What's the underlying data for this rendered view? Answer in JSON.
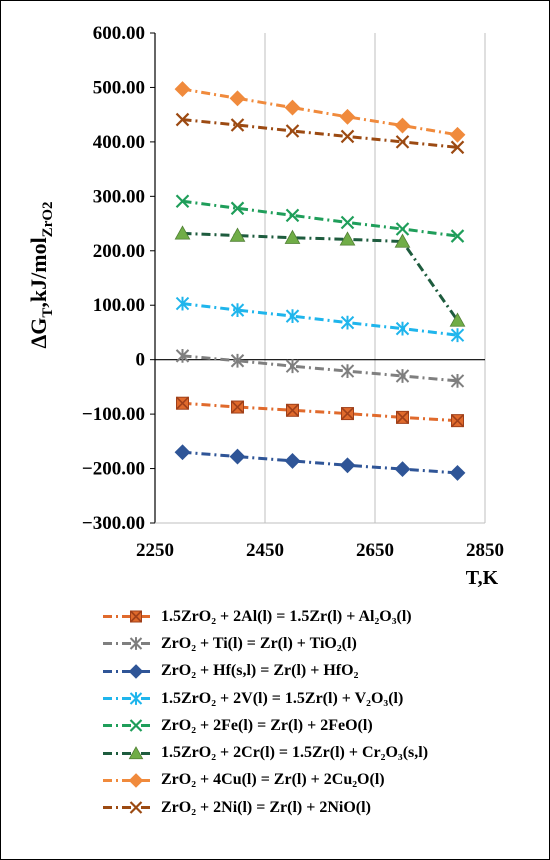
{
  "chart_data": {
    "type": "line",
    "ylabel_main": "ΔG",
    "ylabel_sub1": "T",
    "ylabel_mid": ",kJ/mol",
    "ylabel_sub2": "ZrO2",
    "xlabel": "T,K",
    "xlim": [
      2250,
      2850
    ],
    "ylim": [
      -300,
      600
    ],
    "x_ticks": [
      2250,
      2450,
      2650,
      2850
    ],
    "y_ticks": [
      {
        "value": 600,
        "label": "600.00"
      },
      {
        "value": 500,
        "label": "500.00"
      },
      {
        "value": 400,
        "label": "400.00"
      },
      {
        "value": 300,
        "label": "300.00"
      },
      {
        "value": 200,
        "label": "200.00"
      },
      {
        "value": 100,
        "label": "100.00"
      },
      {
        "value": 0,
        "label": "0"
      },
      {
        "value": -100,
        "label": "-100.00"
      },
      {
        "value": -200,
        "label": "-200.00"
      },
      {
        "value": -300,
        "label": "-300.00"
      }
    ],
    "grid": "vertical",
    "legend_position": "bottom",
    "x": [
      2300,
      2400,
      2500,
      2600,
      2700,
      2800
    ],
    "series": [
      {
        "name": "1.5ZrO₂ + 2Al(l) = 1.5Zr(l) + Al₂O₃(l)",
        "color": "#e06a2c",
        "marker": "boxx",
        "values": [
          -80,
          -87,
          -93,
          -99,
          -106,
          -112
        ]
      },
      {
        "name": "ZrO₂ + Ti(l) = Zr(l) + TiO₂(l)",
        "color": "#7f7f7f",
        "marker": "asterisk",
        "values": [
          7,
          -2,
          -12,
          -21,
          -30,
          -39
        ]
      },
      {
        "name": "ZrO₂ + Hf(s,l) = Zr(l) + HfO₂",
        "color": "#2f5597",
        "marker": "diamond",
        "values": [
          -170,
          -178,
          -186,
          -194,
          -201,
          -208
        ]
      },
      {
        "name": "1.5ZrO₂ + 2V(l) = 1.5Zr(l) + V₂O₃(l)",
        "color": "#1fb5ec",
        "marker": "asterisk",
        "values": [
          103,
          91,
          80,
          68,
          57,
          45
        ]
      },
      {
        "name": "ZrO₂ + 2Fe(l) = Zr(l) + 2FeO(l)",
        "color": "#1f9e5a",
        "marker": "x",
        "values": [
          291,
          278,
          265,
          252,
          240,
          227
        ]
      },
      {
        "name": "1.5ZrO₂ + 2Cr(l) = 1.5Zr(l) + Cr₂O₃(s,l)",
        "color": "#1e5c3e",
        "marker": "triangle",
        "values": [
          232,
          228,
          224,
          221,
          217,
          72
        ]
      },
      {
        "name": "ZrO₂ + 4Cu(l) = Zr(l) + 2Cu₂O(l)",
        "color": "#f08a3c",
        "marker": "diamond",
        "values": [
          497,
          480,
          463,
          446,
          430,
          413
        ]
      },
      {
        "name": "ZrO₂ + 2Ni(l) = Zr(l) + 2NiO(l)",
        "color": "#9c4a12",
        "marker": "x",
        "values": [
          441,
          431,
          420,
          410,
          400,
          390
        ]
      }
    ]
  },
  "marker_colors": {
    "triangle_fill": "#70ad47",
    "boxx_fill": "#e06a2c",
    "boxx_stroke": "#a0401a"
  }
}
